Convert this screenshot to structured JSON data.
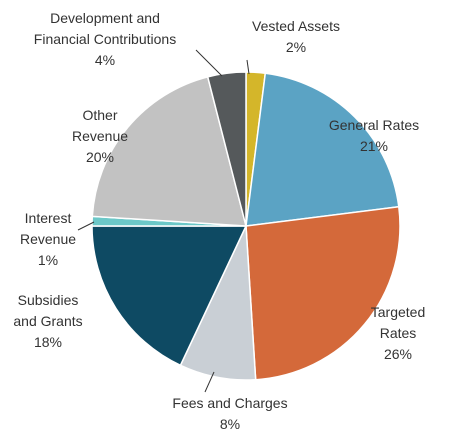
{
  "chart_data": {
    "type": "pie",
    "categories": [
      "Vested Assets",
      "General Rates",
      "Targeted Rates",
      "Fees and Charges",
      "Subsidies\nand Grants",
      "Interest\nRevenue",
      "Other\nRevenue",
      "Development and\nFinancial Contributions"
    ],
    "values": [
      2,
      21,
      26,
      8,
      18,
      1,
      20,
      4
    ],
    "value_labels": [
      "2%",
      "21%",
      "26%",
      "8%",
      "18%",
      "1%",
      "20%",
      "4%"
    ],
    "colors": [
      "#d4b62a",
      "#5ba3c4",
      "#d4693a",
      "#c9cfd5",
      "#0e4a63",
      "#6cc8c8",
      "#c2c2c2",
      "#55595b"
    ]
  }
}
